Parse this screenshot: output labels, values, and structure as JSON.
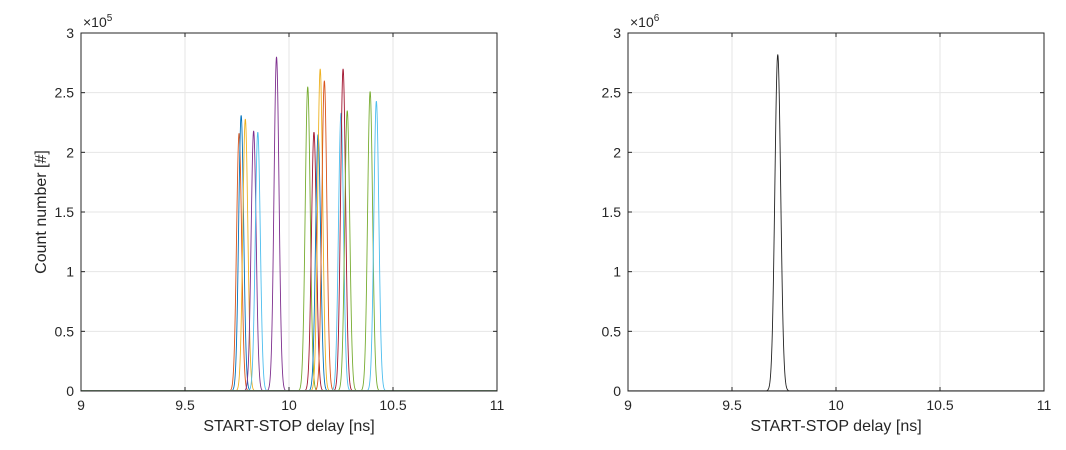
{
  "chart_data": [
    {
      "type": "line",
      "xlabel": "START-STOP delay [ns]",
      "ylabel": "Count number [#]",
      "xlim": [
        9,
        11
      ],
      "ylim": [
        0,
        3
      ],
      "y_multiplier": {
        "base": "×10",
        "exponent": "5"
      },
      "xticks": [
        9,
        9.5,
        10,
        10.5,
        11
      ],
      "yticks": [
        0,
        0.5,
        1,
        1.5,
        2,
        2.5,
        3
      ],
      "xtick_labels": [
        "9",
        "9.5",
        "10",
        "10.5",
        "11"
      ],
      "ytick_labels": [
        "0",
        "0.5",
        "1",
        "1.5",
        "2",
        "2.5",
        "3"
      ],
      "grid": true,
      "peak_width_ns": 0.012,
      "series": [
        {
          "center": 9.76,
          "height": 2.16,
          "color": "#D95319"
        },
        {
          "center": 9.77,
          "height": 2.31,
          "color": "#0072BD"
        },
        {
          "center": 9.79,
          "height": 2.28,
          "color": "#EDB120"
        },
        {
          "center": 9.83,
          "height": 2.18,
          "color": "#7E2F8E"
        },
        {
          "center": 9.85,
          "height": 2.17,
          "color": "#4DBEEE"
        },
        {
          "center": 9.94,
          "height": 2.8,
          "color": "#7E2F8E"
        },
        {
          "center": 10.09,
          "height": 2.55,
          "color": "#77AC30"
        },
        {
          "center": 10.12,
          "height": 2.17,
          "color": "#A2142F"
        },
        {
          "center": 10.14,
          "height": 2.15,
          "color": "#0072BD"
        },
        {
          "center": 10.15,
          "height": 2.7,
          "color": "#EDB120"
        },
        {
          "center": 10.17,
          "height": 2.6,
          "color": "#D95319"
        },
        {
          "center": 10.25,
          "height": 2.33,
          "color": "#4DBEEE"
        },
        {
          "center": 10.26,
          "height": 2.7,
          "color": "#A2142F"
        },
        {
          "center": 10.28,
          "height": 2.35,
          "color": "#77AC30"
        },
        {
          "center": 10.39,
          "height": 2.51,
          "color": "#77AC30"
        },
        {
          "center": 10.42,
          "height": 2.43,
          "color": "#4DBEEE"
        }
      ]
    },
    {
      "type": "line",
      "xlabel": "START-STOP delay [ns]",
      "ylabel": "",
      "xlim": [
        9,
        11
      ],
      "ylim": [
        0,
        3
      ],
      "y_multiplier": {
        "base": "×10",
        "exponent": "6"
      },
      "xticks": [
        9,
        9.5,
        10,
        10.5,
        11
      ],
      "yticks": [
        0,
        0.5,
        1,
        1.5,
        2,
        2.5,
        3
      ],
      "xtick_labels": [
        "9",
        "9.5",
        "10",
        "10.5",
        "11"
      ],
      "ytick_labels": [
        "0",
        "0.5",
        "1",
        "1.5",
        "2",
        "2.5",
        "3"
      ],
      "grid": true,
      "peak_width_ns": 0.014,
      "series": [
        {
          "center": 9.72,
          "height": 2.82,
          "color": "#222222"
        }
      ]
    }
  ]
}
